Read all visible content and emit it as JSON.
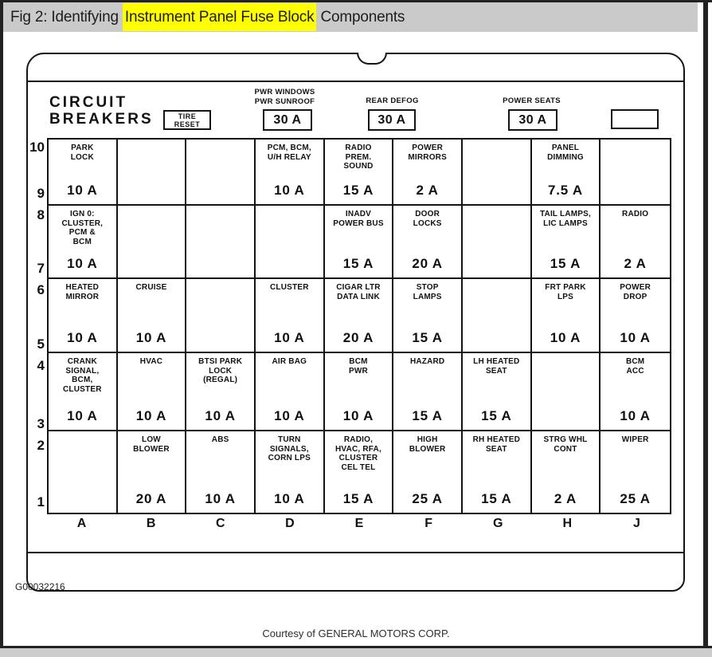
{
  "title_bar": {
    "prefix": "Fig 2: Identifying ",
    "highlight": "Instrument Panel Fuse Block",
    "suffix": " Components"
  },
  "colors": {
    "title_bar_bg": "#cacaca",
    "highlight_bg": "#ffff00",
    "line": "#141414",
    "frame_border": "#222222"
  },
  "fuse_block": {
    "circuit_breakers_label": "CIRCUIT\nBREAKERS",
    "tire_reset_label": "TIRE\nRESET",
    "breakers": [
      {
        "label": "PWR WINDOWS\nPWR SUNROOF",
        "value": "30 A"
      },
      {
        "label": "REAR DEFOG",
        "value": "30 A"
      },
      {
        "label": "POWER SEATS",
        "value": "30 A"
      },
      {
        "label": "",
        "value": ""
      }
    ],
    "row_numbers": [
      [
        "10",
        "9"
      ],
      [
        "8",
        "7"
      ],
      [
        "6",
        "5"
      ],
      [
        "4",
        "3"
      ],
      [
        "2",
        "1"
      ]
    ],
    "column_letters": [
      "A",
      "B",
      "C",
      "D",
      "E",
      "F",
      "G",
      "H",
      "J"
    ],
    "rows": [
      {
        "cells": [
          {
            "label": "PARK\nLOCK",
            "amp": "10 A"
          },
          {
            "label": "",
            "amp": ""
          },
          {
            "label": "",
            "amp": ""
          },
          {
            "label": "PCM, BCM,\nU/H RELAY",
            "amp": "10 A"
          },
          {
            "label": "RADIO\nPREM.\nSOUND",
            "amp": "15 A"
          },
          {
            "label": "POWER\nMIRRORS",
            "amp": "2 A"
          },
          {
            "label": "",
            "amp": ""
          },
          {
            "label": "PANEL\nDIMMING",
            "amp": "7.5 A"
          },
          {
            "label": "",
            "amp": ""
          }
        ]
      },
      {
        "cells": [
          {
            "label": "IGN 0:\nCLUSTER,\nPCM &\nBCM",
            "amp": "10 A"
          },
          {
            "label": "",
            "amp": ""
          },
          {
            "label": "",
            "amp": ""
          },
          {
            "label": "",
            "amp": ""
          },
          {
            "label": "INADV\nPOWER BUS",
            "amp": "15 A"
          },
          {
            "label": "DOOR\nLOCKS",
            "amp": "20 A"
          },
          {
            "label": "",
            "amp": ""
          },
          {
            "label": "TAIL LAMPS,\nLIC LAMPS",
            "amp": "15 A"
          },
          {
            "label": "RADIO",
            "amp": "2 A"
          }
        ]
      },
      {
        "cells": [
          {
            "label": "HEATED\nMIRROR",
            "amp": "10 A"
          },
          {
            "label": "CRUISE",
            "amp": "10 A"
          },
          {
            "label": "",
            "amp": ""
          },
          {
            "label": "CLUSTER",
            "amp": "10 A"
          },
          {
            "label": "CIGAR LTR\nDATA LINK",
            "amp": "20 A"
          },
          {
            "label": "STOP\nLAMPS",
            "amp": "15 A"
          },
          {
            "label": "",
            "amp": ""
          },
          {
            "label": "FRT PARK\nLPS",
            "amp": "10 A"
          },
          {
            "label": "POWER\nDROP",
            "amp": "10 A"
          }
        ]
      },
      {
        "cells": [
          {
            "label": "CRANK\nSIGNAL,\nBCM,\nCLUSTER",
            "amp": "10 A"
          },
          {
            "label": "HVAC",
            "amp": "10 A"
          },
          {
            "label": "BTSI PARK\nLOCK\n(REGAL)",
            "amp": "10 A"
          },
          {
            "label": "AIR BAG",
            "amp": "10 A"
          },
          {
            "label": "BCM\nPWR",
            "amp": "10 A"
          },
          {
            "label": "HAZARD",
            "amp": "15 A"
          },
          {
            "label": "LH HEATED\nSEAT",
            "amp": "15 A"
          },
          {
            "label": "",
            "amp": ""
          },
          {
            "label": "BCM\nACC",
            "amp": "10 A"
          }
        ]
      },
      {
        "cells": [
          {
            "label": "",
            "amp": ""
          },
          {
            "label": "LOW\nBLOWER",
            "amp": "20 A"
          },
          {
            "label": "ABS",
            "amp": "10 A"
          },
          {
            "label": "TURN\nSIGNALS,\nCORN LPS",
            "amp": "10 A"
          },
          {
            "label": "RADIO,\nHVAC, RFA,\nCLUSTER\nCEL TEL",
            "amp": "15 A"
          },
          {
            "label": "HIGH\nBLOWER",
            "amp": "25 A"
          },
          {
            "label": "RH HEATED\nSEAT",
            "amp": "15 A"
          },
          {
            "label": "STRG WHL\nCONT",
            "amp": "2 A"
          },
          {
            "label": "WIPER",
            "amp": "25 A"
          }
        ]
      }
    ],
    "figure_id": "G00032216"
  },
  "footer": {
    "courtesy": "Courtesy of GENERAL MOTORS CORP."
  }
}
